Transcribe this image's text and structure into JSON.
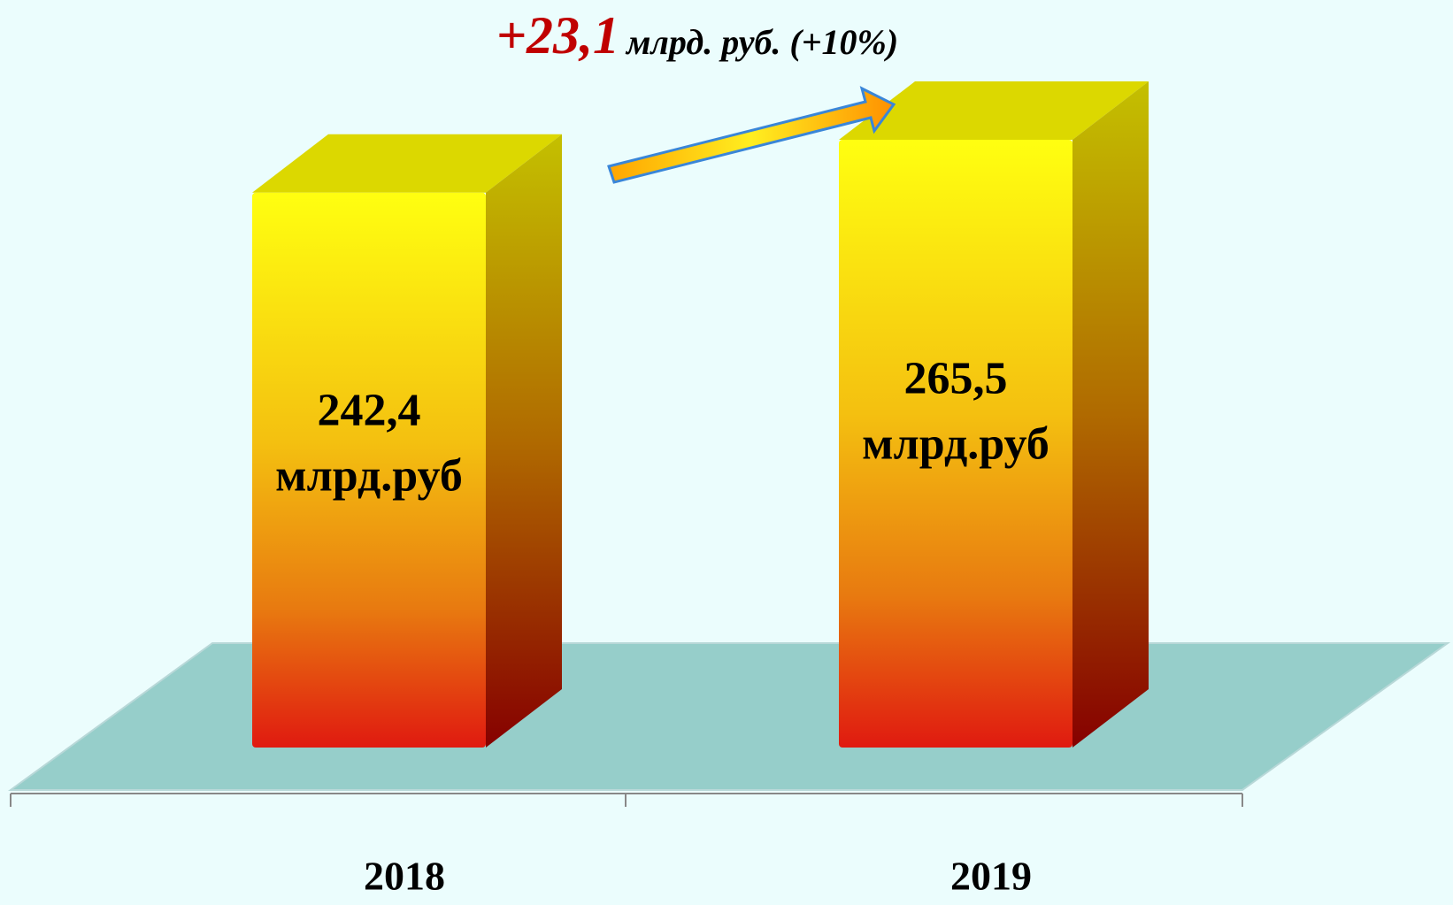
{
  "chart_data": {
    "type": "bar3d",
    "annotations": {
      "delta": "+23,1",
      "delta_unit": "млрд. руб. (+10%)"
    },
    "categories": [
      "2018",
      "2019"
    ],
    "values": [
      242.4,
      265.5
    ],
    "value_labels": [
      "242,4",
      "265,5"
    ],
    "unit_label": "млрд.руб",
    "color": "#ffff00"
  }
}
